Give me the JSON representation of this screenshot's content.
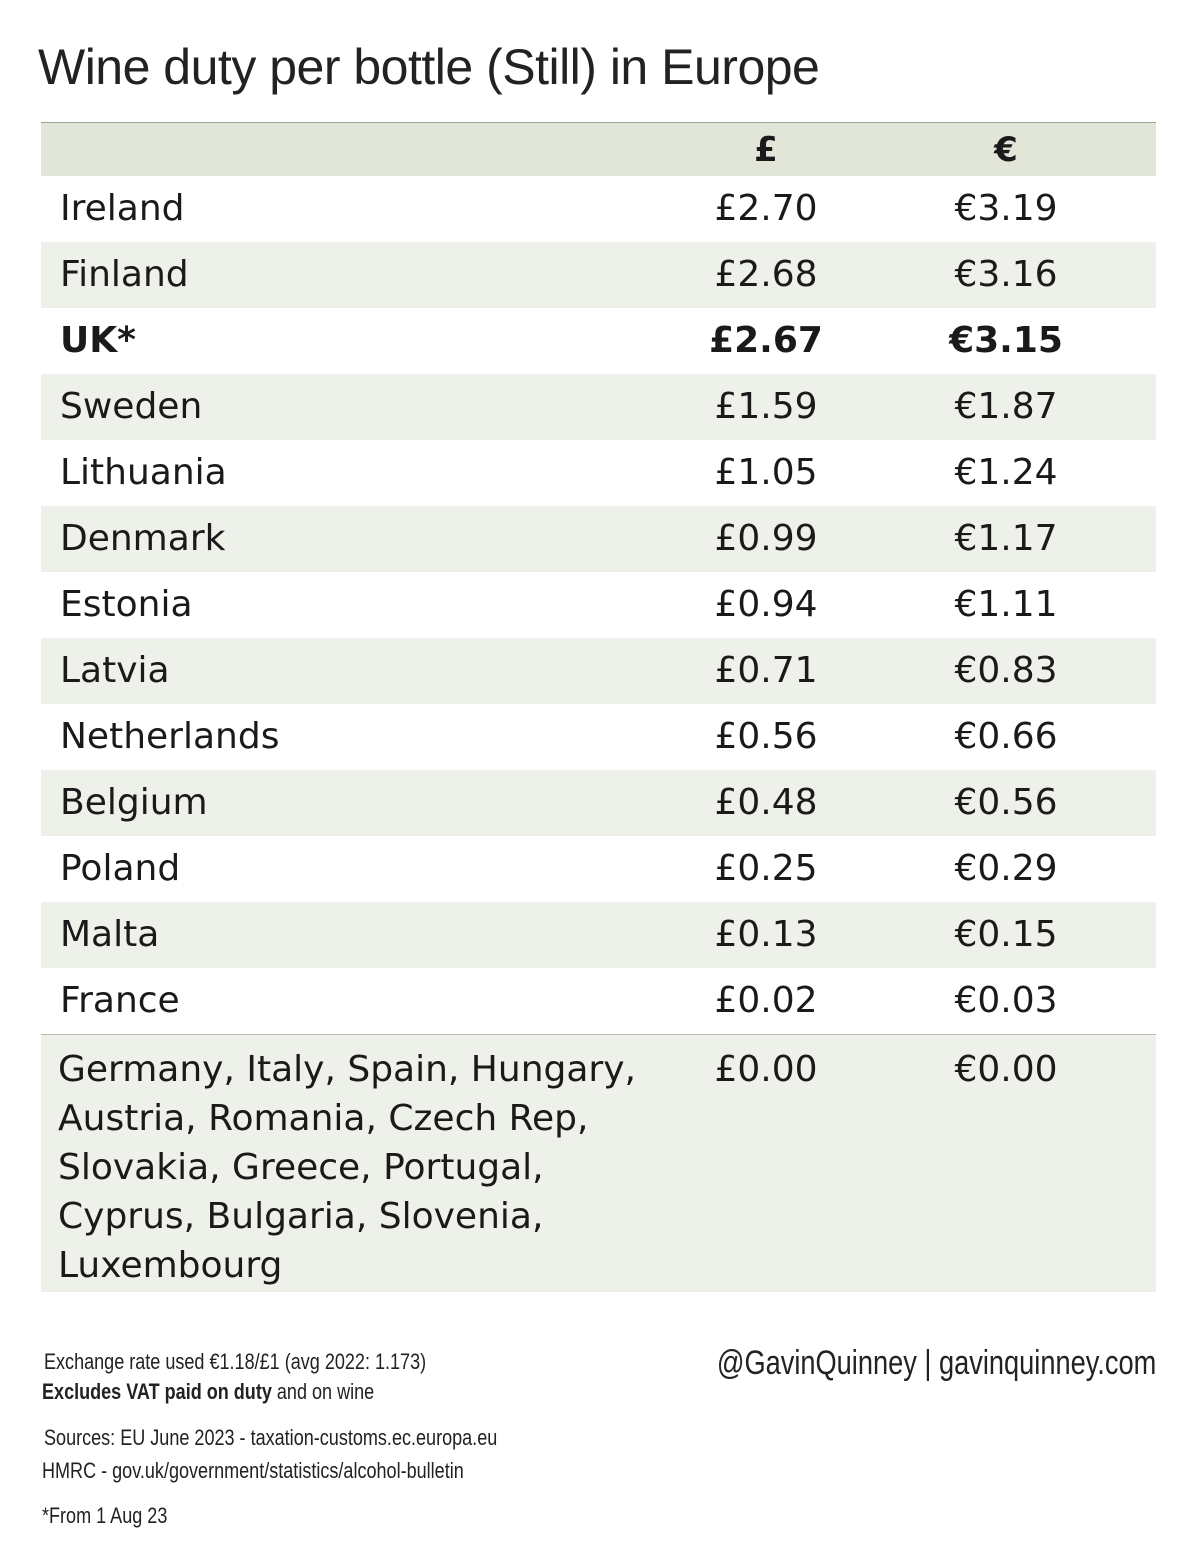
{
  "title": "Wine duty per bottle (Still) in Europe",
  "chart_data": {
    "type": "table",
    "title": "Wine duty per bottle (Still) in Europe",
    "columns": [
      "",
      "£",
      "€"
    ],
    "rows": [
      {
        "country": "Ireland",
        "gbp": "£2.70",
        "eur": "€3.19"
      },
      {
        "country": "Finland",
        "gbp": "£2.68",
        "eur": "€3.16"
      },
      {
        "country": "UK*",
        "gbp": "£2.67",
        "eur": "€3.15",
        "highlight": true
      },
      {
        "country": "Sweden",
        "gbp": "£1.59",
        "eur": "€1.87"
      },
      {
        "country": "Lithuania",
        "gbp": "£1.05",
        "eur": "€1.24"
      },
      {
        "country": "Denmark",
        "gbp": "£0.99",
        "eur": "€1.17"
      },
      {
        "country": "Estonia",
        "gbp": "£0.94",
        "eur": "€1.11"
      },
      {
        "country": "Latvia",
        "gbp": "£0.71",
        "eur": "€0.83"
      },
      {
        "country": "Netherlands",
        "gbp": "£0.56",
        "eur": "€0.66"
      },
      {
        "country": "Belgium",
        "gbp": "£0.48",
        "eur": "€0.56"
      },
      {
        "country": "Poland",
        "gbp": "£0.25",
        "eur": "€0.29"
      },
      {
        "country": "Malta",
        "gbp": "£0.13",
        "eur": "€0.15"
      },
      {
        "country": "France",
        "gbp": "£0.02",
        "eur": "€0.03"
      }
    ],
    "zero_row": {
      "countries": [
        "Germany, Italy, Spain, Hungary,",
        "Austria, Romania, Czech Rep,",
        "Slovakia, Greece, Portugal,",
        "Cyprus, Bulgaria, Slovenia,",
        "Luxembourg"
      ],
      "gbp": "£0.00",
      "eur": "€0.00"
    }
  },
  "footer": {
    "exchange": "Exchange rate used €1.18/£1  (avg 2022: 1.173)",
    "vat_bold": "Excludes VAT paid on duty",
    "vat_rest": " and on wine",
    "sources1": "Sources: EU June 2023 - taxation-customs.ec.europa.eu",
    "sources2": "HMRC - gov.uk/government/statistics/alcohol-bulletin",
    "note": "*From 1 Aug 23",
    "credit": "@GavinQuinney  |  gavinquinney.com"
  },
  "colors": {
    "header_bg": "#e1e6d8",
    "alt_row_bg": "#eef0ea"
  }
}
